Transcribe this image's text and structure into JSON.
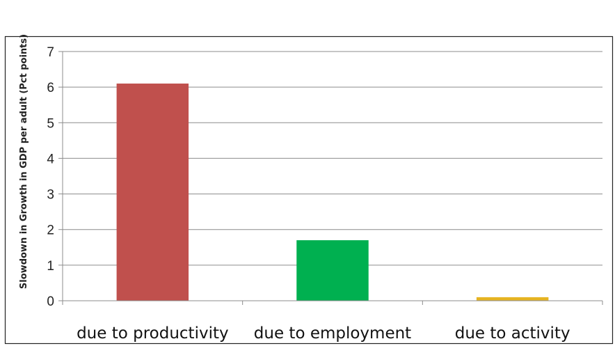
{
  "chart_data": {
    "type": "bar",
    "title": "",
    "xlabel": "",
    "ylabel": "Slowdown in Growth in GDP per adult (Pct  points)",
    "categories": [
      "due to productivity",
      "due to employment",
      "due to activity"
    ],
    "values": [
      6.1,
      1.7,
      0.1
    ],
    "colors": [
      "#C0504D",
      "#00B050",
      "#E6B422"
    ],
    "ylim": [
      0,
      7
    ],
    "yticks": [
      "0",
      "1",
      "2",
      "3",
      "4",
      "5",
      "6",
      "7"
    ],
    "grid": true,
    "legend": "none"
  }
}
